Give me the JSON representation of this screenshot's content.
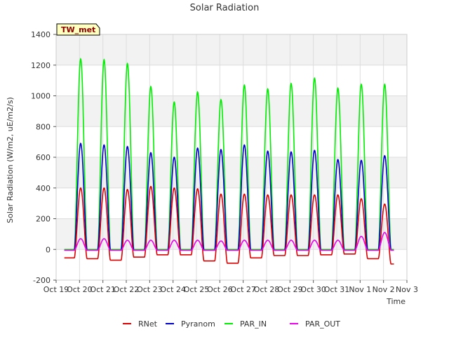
{
  "chart_data": {
    "type": "line",
    "title": "Solar Radiation",
    "xlabel": "Time",
    "ylabel": "Solar Radiation (W/m2, uE/m2/s)",
    "station_label": "TW_met",
    "ylim": [
      -200,
      1400
    ],
    "yticks": [
      -200,
      0,
      200,
      400,
      600,
      800,
      1000,
      1200,
      1400
    ],
    "x_range_days": [
      0,
      15
    ],
    "xtick_labels": [
      "Oct 19",
      "Oct 20",
      "Oct 21",
      "Oct 22",
      "Oct 23",
      "Oct 24",
      "Oct 25",
      "Oct 26",
      "Oct 27",
      "Oct 28",
      "Oct 29",
      "Oct 30",
      "Oct 31",
      "Nov 1",
      "Nov 2",
      "Nov 3"
    ],
    "grid": true,
    "legend_position": "bottom",
    "data_span_days": [
      0.35,
      14.45
    ],
    "series": [
      {
        "name": "RNet",
        "color": "#dd0000",
        "night_values": [
          -55,
          -60,
          -70,
          -50,
          -35,
          -35,
          -75,
          -90,
          -55,
          -40,
          -40,
          -35,
          -30,
          -60,
          -95
        ],
        "daily_peaks": [
          400,
          400,
          390,
          410,
          400,
          395,
          360,
          360,
          355,
          355,
          355,
          355,
          330,
          295
        ]
      },
      {
        "name": "Pyranom",
        "color": "#0000cc",
        "night_values": [
          -5,
          -5,
          -5,
          -5,
          -5,
          -5,
          -5,
          -5,
          -5,
          -5,
          -5,
          -5,
          -5,
          -5,
          -5
        ],
        "daily_peaks": [
          690,
          680,
          670,
          630,
          600,
          660,
          650,
          680,
          640,
          635,
          645,
          585,
          580,
          610
        ]
      },
      {
        "name": "PAR_IN",
        "color": "#00ee00",
        "night_values": [
          0,
          0,
          0,
          0,
          0,
          0,
          0,
          0,
          0,
          0,
          0,
          0,
          0,
          0,
          0
        ],
        "daily_peaks": [
          1240,
          1235,
          1210,
          1060,
          960,
          1025,
          975,
          1070,
          1045,
          1080,
          1115,
          1050,
          1075,
          1075
        ]
      },
      {
        "name": "PAR_OUT",
        "color": "#ee00ee",
        "night_values": [
          -5,
          -5,
          -5,
          -5,
          -5,
          -5,
          -5,
          -5,
          -5,
          -5,
          -5,
          -5,
          -5,
          -5,
          -5
        ],
        "daily_peaks": [
          70,
          70,
          60,
          60,
          60,
          60,
          55,
          60,
          60,
          60,
          60,
          60,
          85,
          110
        ]
      }
    ]
  }
}
